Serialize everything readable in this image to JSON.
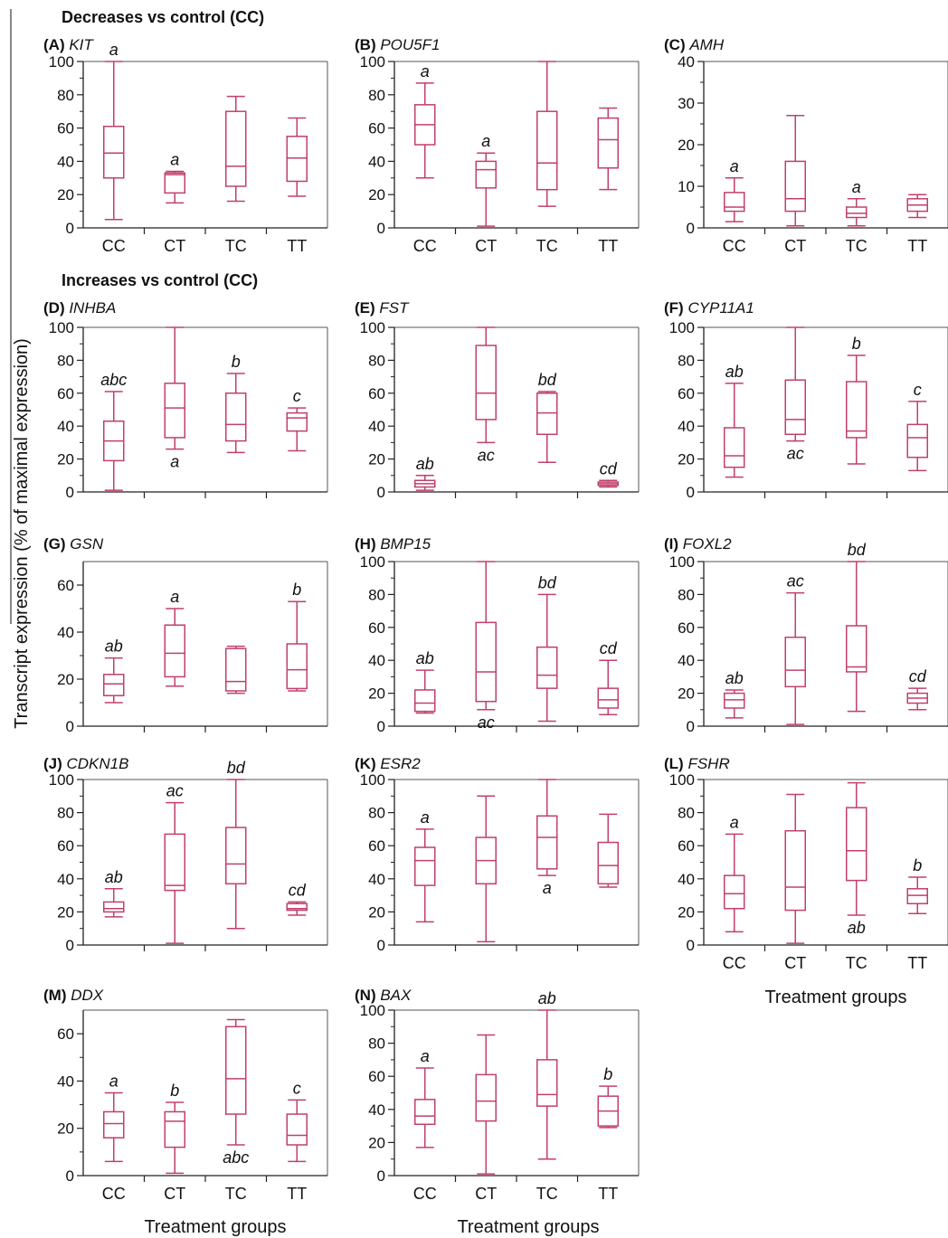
{
  "figure": {
    "section_decreases": "Decreases vs control (CC)",
    "section_increases": "Increases vs control (CC)",
    "y_axis_label": "Transcript expression (% of maximal expression)",
    "x_axis_label": "Treatment groups",
    "box_color": "#c0406a"
  },
  "chart_data": [
    {
      "type": "box",
      "panel": "(A)",
      "gene": "KIT",
      "ylim": [
        0,
        100
      ],
      "yticks": [
        0,
        20,
        40,
        60,
        80,
        100
      ],
      "categories": [
        "CC",
        "CT",
        "TC",
        "TT"
      ],
      "boxes": [
        {
          "min": 5,
          "q1": 30,
          "median": 45,
          "q3": 61,
          "max": 100
        },
        {
          "min": 15,
          "q1": 21,
          "median": 32,
          "q3": 33,
          "max": 34
        },
        {
          "min": 16,
          "q1": 25,
          "median": 37,
          "q3": 70,
          "max": 79
        },
        {
          "min": 19,
          "q1": 28,
          "median": 42,
          "q3": 55,
          "max": 66
        }
      ],
      "labels": [
        {
          "category": "CC",
          "text": "a",
          "pos": "above"
        },
        {
          "category": "CT",
          "text": "a",
          "pos": "above"
        }
      ]
    },
    {
      "type": "box",
      "panel": "(B)",
      "gene": "POU5F1",
      "ylim": [
        0,
        100
      ],
      "yticks": [
        0,
        20,
        40,
        60,
        80,
        100
      ],
      "categories": [
        "CC",
        "CT",
        "TC",
        "TT"
      ],
      "boxes": [
        {
          "min": 30,
          "q1": 50,
          "median": 62,
          "q3": 74,
          "max": 87
        },
        {
          "min": 1,
          "q1": 24,
          "median": 35,
          "q3": 40,
          "max": 45
        },
        {
          "min": 13,
          "q1": 23,
          "median": 39,
          "q3": 70,
          "max": 100
        },
        {
          "min": 23,
          "q1": 36,
          "median": 53,
          "q3": 66,
          "max": 72
        }
      ],
      "labels": [
        {
          "category": "CC",
          "text": "a",
          "pos": "above"
        },
        {
          "category": "CT",
          "text": "a",
          "pos": "above"
        }
      ]
    },
    {
      "type": "box",
      "panel": "(C)",
      "gene": "AMH",
      "ylim": [
        0,
        40
      ],
      "yticks": [
        0,
        10,
        20,
        30,
        40
      ],
      "categories": [
        "CC",
        "CT",
        "TC",
        "TT"
      ],
      "boxes": [
        {
          "min": 1.5,
          "q1": 4,
          "median": 5,
          "q3": 8.5,
          "max": 12
        },
        {
          "min": 0.5,
          "q1": 4,
          "median": 7,
          "q3": 16,
          "max": 27
        },
        {
          "min": 0.5,
          "q1": 2.5,
          "median": 3.5,
          "q3": 5,
          "max": 7
        },
        {
          "min": 2.5,
          "q1": 4,
          "median": 5.5,
          "q3": 7,
          "max": 8
        }
      ],
      "labels": [
        {
          "category": "CC",
          "text": "a",
          "pos": "above"
        },
        {
          "category": "TC",
          "text": "a",
          "pos": "above"
        }
      ]
    },
    {
      "type": "box",
      "panel": "(D)",
      "gene": "INHBA",
      "ylim": [
        0,
        100
      ],
      "yticks": [
        0,
        20,
        40,
        60,
        80,
        100
      ],
      "categories": [
        "CC",
        "CT",
        "TC",
        "TT"
      ],
      "boxes": [
        {
          "min": 1,
          "q1": 19,
          "median": 31,
          "q3": 43,
          "max": 61
        },
        {
          "min": 26,
          "q1": 33,
          "median": 51,
          "q3": 66,
          "max": 100
        },
        {
          "min": 24,
          "q1": 31,
          "median": 41,
          "q3": 60,
          "max": 72
        },
        {
          "min": 25,
          "q1": 37,
          "median": 45,
          "q3": 48,
          "max": 51
        }
      ],
      "labels": [
        {
          "category": "CC",
          "text": "abc",
          "pos": "above"
        },
        {
          "category": "CT",
          "text": "a",
          "pos": "below"
        },
        {
          "category": "TC",
          "text": "b",
          "pos": "above"
        },
        {
          "category": "TT",
          "text": "c",
          "pos": "above"
        }
      ]
    },
    {
      "type": "box",
      "panel": "(E)",
      "gene": "FST",
      "ylim": [
        0,
        100
      ],
      "yticks": [
        0,
        20,
        40,
        60,
        80,
        100
      ],
      "categories": [
        "CC",
        "CT",
        "TC",
        "TT"
      ],
      "boxes": [
        {
          "min": 1,
          "q1": 3,
          "median": 5,
          "q3": 7,
          "max": 10
        },
        {
          "min": 30,
          "q1": 44,
          "median": 60,
          "q3": 89,
          "max": 100
        },
        {
          "min": 18,
          "q1": 35,
          "median": 48,
          "q3": 60,
          "max": 61
        },
        {
          "min": 3,
          "q1": 4,
          "median": 5,
          "q3": 6,
          "max": 7
        }
      ],
      "labels": [
        {
          "category": "CC",
          "text": "ab",
          "pos": "above"
        },
        {
          "category": "CT",
          "text": "ac",
          "pos": "below"
        },
        {
          "category": "TC",
          "text": "bd",
          "pos": "above"
        },
        {
          "category": "TT",
          "text": "cd",
          "pos": "above"
        }
      ]
    },
    {
      "type": "box",
      "panel": "(F)",
      "gene": "CYP11A1",
      "ylim": [
        0,
        100
      ],
      "yticks": [
        0,
        20,
        40,
        60,
        80,
        100
      ],
      "categories": [
        "CC",
        "CT",
        "TC",
        "TT"
      ],
      "boxes": [
        {
          "min": 9,
          "q1": 15,
          "median": 22,
          "q3": 39,
          "max": 66
        },
        {
          "min": 31,
          "q1": 35,
          "median": 44,
          "q3": 68,
          "max": 100
        },
        {
          "min": 17,
          "q1": 33,
          "median": 37,
          "q3": 67,
          "max": 83
        },
        {
          "min": 13,
          "q1": 21,
          "median": 33,
          "q3": 41,
          "max": 55
        }
      ],
      "labels": [
        {
          "category": "CC",
          "text": "ab",
          "pos": "above"
        },
        {
          "category": "CT",
          "text": "ac",
          "pos": "below"
        },
        {
          "category": "TC",
          "text": "b",
          "pos": "above"
        },
        {
          "category": "TT",
          "text": "c",
          "pos": "above"
        }
      ]
    },
    {
      "type": "box",
      "panel": "(G)",
      "gene": "GSN",
      "ylim": [
        0,
        70
      ],
      "yticks": [
        0,
        20,
        40,
        60
      ],
      "categories": [
        "CC",
        "CT",
        "TC",
        "TT"
      ],
      "boxes": [
        {
          "min": 10,
          "q1": 13,
          "median": 18,
          "q3": 22,
          "max": 29
        },
        {
          "min": 17,
          "q1": 21,
          "median": 31,
          "q3": 43,
          "max": 50
        },
        {
          "min": 14,
          "q1": 15,
          "median": 19,
          "q3": 33,
          "max": 34
        },
        {
          "min": 15,
          "q1": 16,
          "median": 24,
          "q3": 35,
          "max": 53
        }
      ],
      "labels": [
        {
          "category": "CC",
          "text": "ab",
          "pos": "above"
        },
        {
          "category": "CT",
          "text": "a",
          "pos": "above"
        },
        {
          "category": "TT",
          "text": "b",
          "pos": "above"
        }
      ]
    },
    {
      "type": "box",
      "panel": "(H)",
      "gene": "BMP15",
      "ylim": [
        0,
        100
      ],
      "yticks": [
        0,
        20,
        40,
        60,
        80,
        100
      ],
      "categories": [
        "CC",
        "CT",
        "TC",
        "TT"
      ],
      "boxes": [
        {
          "min": 8,
          "q1": 9,
          "median": 14,
          "q3": 22,
          "max": 34
        },
        {
          "min": 10,
          "q1": 15,
          "median": 33,
          "q3": 63,
          "max": 100
        },
        {
          "min": 3,
          "q1": 23,
          "median": 31,
          "q3": 48,
          "max": 80
        },
        {
          "min": 7,
          "q1": 11,
          "median": 16,
          "q3": 23,
          "max": 40
        }
      ],
      "labels": [
        {
          "category": "CC",
          "text": "ab",
          "pos": "above"
        },
        {
          "category": "CT",
          "text": "ac",
          "pos": "below"
        },
        {
          "category": "TC",
          "text": "bd",
          "pos": "above"
        },
        {
          "category": "TT",
          "text": "cd",
          "pos": "above"
        }
      ]
    },
    {
      "type": "box",
      "panel": "(I)",
      "gene": "FOXL2",
      "ylim": [
        0,
        100
      ],
      "yticks": [
        0,
        20,
        40,
        60,
        80,
        100
      ],
      "categories": [
        "CC",
        "CT",
        "TC",
        "TT"
      ],
      "boxes": [
        {
          "min": 5,
          "q1": 11,
          "median": 16,
          "q3": 20,
          "max": 22
        },
        {
          "min": 1,
          "q1": 24,
          "median": 34,
          "q3": 54,
          "max": 81
        },
        {
          "min": 9,
          "q1": 33,
          "median": 36,
          "q3": 61,
          "max": 100
        },
        {
          "min": 10,
          "q1": 14,
          "median": 17,
          "q3": 20,
          "max": 23
        }
      ],
      "labels": [
        {
          "category": "CC",
          "text": "ab",
          "pos": "above"
        },
        {
          "category": "CT",
          "text": "ac",
          "pos": "above"
        },
        {
          "category": "TC",
          "text": "bd",
          "pos": "above"
        },
        {
          "category": "TT",
          "text": "cd",
          "pos": "above"
        }
      ]
    },
    {
      "type": "box",
      "panel": "(J)",
      "gene": "CDKN1B",
      "ylim": [
        0,
        100
      ],
      "yticks": [
        0,
        20,
        40,
        60,
        80,
        100
      ],
      "categories": [
        "CC",
        "CT",
        "TC",
        "TT"
      ],
      "boxes": [
        {
          "min": 17,
          "q1": 20,
          "median": 22,
          "q3": 26,
          "max": 34
        },
        {
          "min": 1,
          "q1": 33,
          "median": 36,
          "q3": 67,
          "max": 86
        },
        {
          "min": 10,
          "q1": 37,
          "median": 49,
          "q3": 71,
          "max": 100
        },
        {
          "min": 18,
          "q1": 21,
          "median": 22,
          "q3": 25,
          "max": 26
        }
      ],
      "labels": [
        {
          "category": "CC",
          "text": "ab",
          "pos": "above"
        },
        {
          "category": "CT",
          "text": "ac",
          "pos": "above"
        },
        {
          "category": "TC",
          "text": "bd",
          "pos": "above"
        },
        {
          "category": "TT",
          "text": "cd",
          "pos": "above"
        }
      ]
    },
    {
      "type": "box",
      "panel": "(K)",
      "gene": "ESR2",
      "ylim": [
        0,
        100
      ],
      "yticks": [
        0,
        20,
        40,
        60,
        80,
        100
      ],
      "categories": [
        "CC",
        "CT",
        "TC",
        "TT"
      ],
      "boxes": [
        {
          "min": 14,
          "q1": 36,
          "median": 51,
          "q3": 59,
          "max": 70
        },
        {
          "min": 2,
          "q1": 37,
          "median": 51,
          "q3": 65,
          "max": 90
        },
        {
          "min": 42,
          "q1": 46,
          "median": 65,
          "q3": 78,
          "max": 100
        },
        {
          "min": 35,
          "q1": 37,
          "median": 48,
          "q3": 62,
          "max": 79
        }
      ],
      "labels": [
        {
          "category": "CC",
          "text": "a",
          "pos": "above"
        },
        {
          "category": "TC",
          "text": "a",
          "pos": "below"
        }
      ]
    },
    {
      "type": "box",
      "panel": "(L)",
      "gene": "FSHR",
      "ylim": [
        0,
        100
      ],
      "yticks": [
        0,
        20,
        40,
        60,
        80,
        100
      ],
      "categories": [
        "CC",
        "CT",
        "TC",
        "TT"
      ],
      "boxes": [
        {
          "min": 8,
          "q1": 22,
          "median": 31,
          "q3": 42,
          "max": 67
        },
        {
          "min": 1,
          "q1": 21,
          "median": 35,
          "q3": 69,
          "max": 91
        },
        {
          "min": 18,
          "q1": 39,
          "median": 57,
          "q3": 83,
          "max": 98
        },
        {
          "min": 19,
          "q1": 25,
          "median": 30,
          "q3": 34,
          "max": 41
        }
      ],
      "labels": [
        {
          "category": "CC",
          "text": "a",
          "pos": "above"
        },
        {
          "category": "TC",
          "text": "ab",
          "pos": "below"
        },
        {
          "category": "TT",
          "text": "b",
          "pos": "above"
        }
      ]
    },
    {
      "type": "box",
      "panel": "(M)",
      "gene": "DDX",
      "ylim": [
        0,
        70
      ],
      "yticks": [
        0,
        20,
        40,
        60
      ],
      "categories": [
        "CC",
        "CT",
        "TC",
        "TT"
      ],
      "boxes": [
        {
          "min": 6,
          "q1": 16,
          "median": 22,
          "q3": 27,
          "max": 35
        },
        {
          "min": 1,
          "q1": 12,
          "median": 23,
          "q3": 27,
          "max": 31
        },
        {
          "min": 13,
          "q1": 26,
          "median": 41,
          "q3": 63,
          "max": 66
        },
        {
          "min": 6,
          "q1": 13,
          "median": 17,
          "q3": 26,
          "max": 32
        }
      ],
      "labels": [
        {
          "category": "CC",
          "text": "a",
          "pos": "above"
        },
        {
          "category": "CT",
          "text": "b",
          "pos": "above"
        },
        {
          "category": "TC",
          "text": "abc",
          "pos": "below"
        },
        {
          "category": "TT",
          "text": "c",
          "pos": "above"
        }
      ]
    },
    {
      "type": "box",
      "panel": "(N)",
      "gene": "BAX",
      "ylim": [
        0,
        100
      ],
      "yticks": [
        0,
        20,
        40,
        60,
        80,
        100
      ],
      "categories": [
        "CC",
        "CT",
        "TC",
        "TT"
      ],
      "boxes": [
        {
          "min": 17,
          "q1": 31,
          "median": 36,
          "q3": 46,
          "max": 65
        },
        {
          "min": 1,
          "q1": 33,
          "median": 45,
          "q3": 61,
          "max": 85
        },
        {
          "min": 10,
          "q1": 42,
          "median": 49,
          "q3": 70,
          "max": 100
        },
        {
          "min": 29,
          "q1": 30,
          "median": 39,
          "q3": 48,
          "max": 54
        }
      ],
      "labels": [
        {
          "category": "CC",
          "text": "a",
          "pos": "above"
        },
        {
          "category": "TC",
          "text": "ab",
          "pos": "above"
        },
        {
          "category": "TT",
          "text": "b",
          "pos": "above"
        }
      ]
    }
  ]
}
